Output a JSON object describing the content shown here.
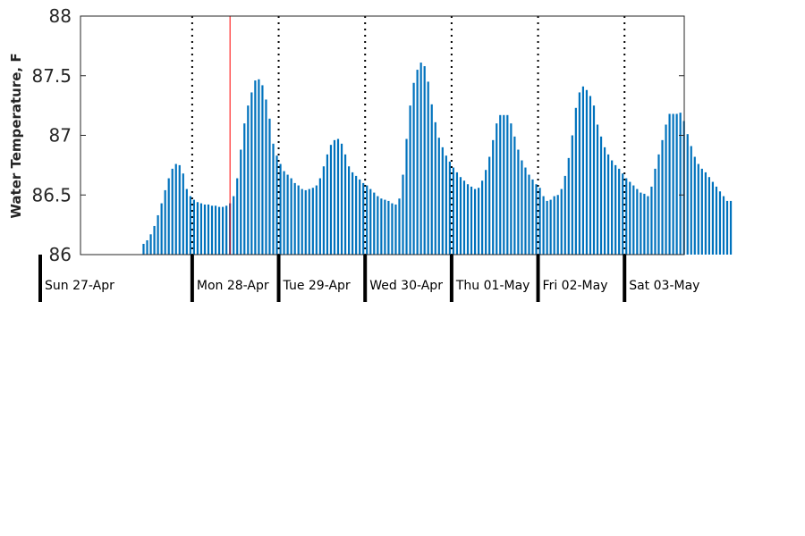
{
  "chart_data": {
    "type": "bar",
    "ylabel": "Water Temperature, F",
    "ylim": [
      86,
      88
    ],
    "yticks": [
      "86",
      "86.5",
      "87",
      "87.5",
      "88"
    ],
    "days": [
      "Sun 27-Apr",
      "Mon 28-Apr",
      "Tue 29-Apr",
      "Wed 30-Apr",
      "Thu 01-May",
      "Fri 02-May",
      "Sat 03-May"
    ],
    "bar_color": "#0072BD",
    "current_time_marker_color": "#FF0000",
    "current_time_hours": 36,
    "start_hour": 12,
    "interval_hours": 1,
    "values": [
      86.09,
      86.12,
      86.17,
      86.24,
      86.33,
      86.43,
      86.54,
      86.64,
      86.72,
      86.76,
      86.75,
      86.68,
      86.55,
      86.49,
      86.46,
      86.44,
      86.43,
      86.42,
      86.42,
      86.41,
      86.41,
      86.4,
      86.4,
      86.41,
      86.43,
      86.49,
      86.64,
      86.88,
      87.1,
      87.25,
      87.36,
      87.46,
      87.47,
      87.42,
      87.3,
      87.14,
      86.93,
      86.83,
      86.76,
      86.7,
      86.67,
      86.64,
      86.6,
      86.58,
      86.55,
      86.54,
      86.55,
      86.56,
      86.58,
      86.64,
      86.74,
      86.84,
      86.92,
      86.96,
      86.97,
      86.93,
      86.84,
      86.74,
      86.69,
      86.66,
      86.63,
      86.6,
      86.58,
      86.55,
      86.52,
      86.49,
      86.47,
      86.46,
      86.45,
      86.43,
      86.42,
      86.47,
      86.67,
      86.97,
      87.25,
      87.44,
      87.55,
      87.61,
      87.58,
      87.45,
      87.26,
      87.11,
      86.98,
      86.9,
      86.83,
      86.78,
      86.73,
      86.69,
      86.65,
      86.62,
      86.59,
      86.57,
      86.55,
      86.56,
      86.62,
      86.71,
      86.82,
      86.96,
      87.1,
      87.17,
      87.17,
      87.17,
      87.1,
      86.99,
      86.88,
      86.79,
      86.73,
      86.67,
      86.63,
      86.59,
      86.56,
      86.49,
      86.45,
      86.46,
      86.49,
      86.5,
      86.55,
      86.66,
      86.81,
      87.0,
      87.23,
      87.36,
      87.41,
      87.38,
      87.33,
      87.25,
      87.09,
      86.99,
      86.9,
      86.84,
      86.79,
      86.75,
      86.72,
      86.68,
      86.64,
      86.61,
      86.58,
      86.55,
      86.52,
      86.51,
      86.49,
      86.57,
      86.72,
      86.84,
      86.96,
      87.09,
      87.18,
      87.18,
      87.18,
      87.19,
      87.12,
      87.01,
      86.91,
      86.82,
      86.76,
      86.72,
      86.69,
      86.65,
      86.61,
      86.57,
      86.53,
      86.49,
      86.45,
      86.45
    ]
  }
}
